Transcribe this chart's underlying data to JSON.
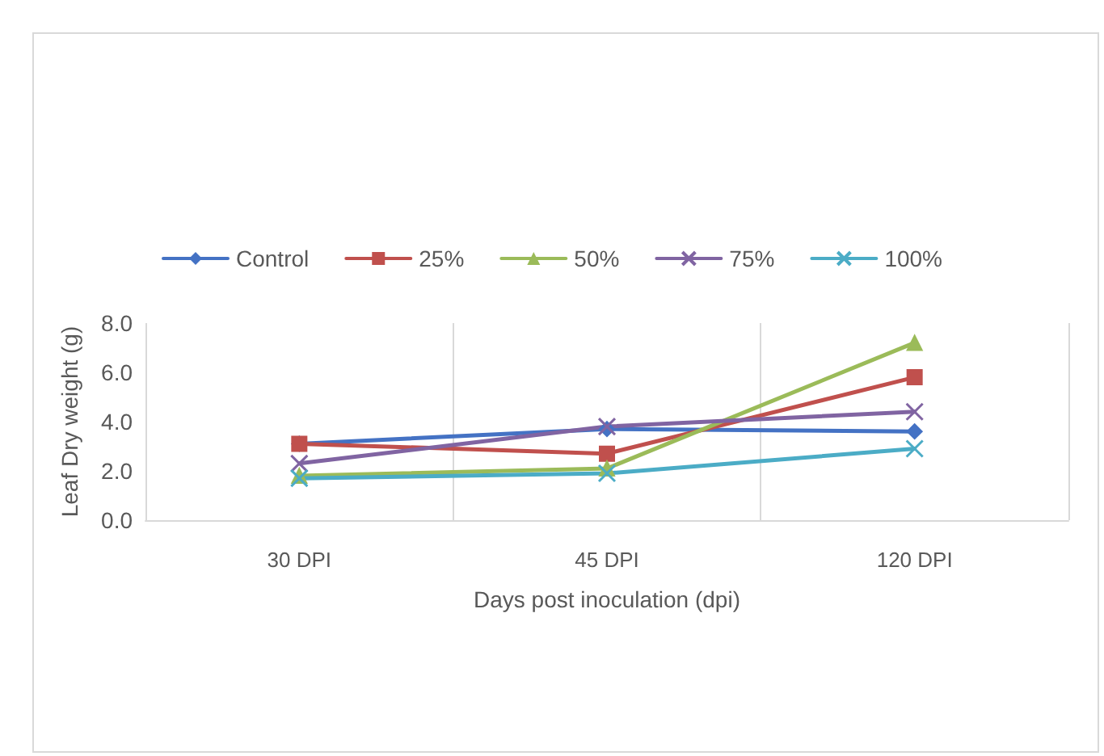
{
  "chart_data": {
    "type": "line",
    "xlabel": "Days post inoculation (dpi)",
    "ylabel": "Leaf Dry weight (g)",
    "categories": [
      "30 DPI",
      "45 DPI",
      "120 DPI"
    ],
    "series": [
      {
        "name": "Control",
        "color": "#4472c4",
        "marker": "diamond",
        "values": [
          3.1,
          3.7,
          3.6
        ]
      },
      {
        "name": "25%",
        "color": "#c0504d",
        "marker": "square",
        "values": [
          3.1,
          2.7,
          5.8
        ]
      },
      {
        "name": "50%",
        "color": "#9bbb59",
        "marker": "triangle",
        "values": [
          1.8,
          2.1,
          7.2
        ]
      },
      {
        "name": "75%",
        "color": "#8064a2",
        "marker": "cross",
        "values": [
          2.3,
          3.8,
          4.4
        ]
      },
      {
        "name": "100%",
        "color": "#4bacc6",
        "marker": "cross",
        "values": [
          1.7,
          1.9,
          2.9
        ]
      }
    ],
    "ylim": [
      0,
      8
    ],
    "yticks": [
      {
        "value": 0,
        "label": "0.0"
      },
      {
        "value": 2,
        "label": "2.0"
      },
      {
        "value": 4,
        "label": "4.0"
      },
      {
        "value": 6,
        "label": "6.0"
      },
      {
        "value": 8,
        "label": "8.0"
      }
    ],
    "grid": "x",
    "legend": "top"
  }
}
